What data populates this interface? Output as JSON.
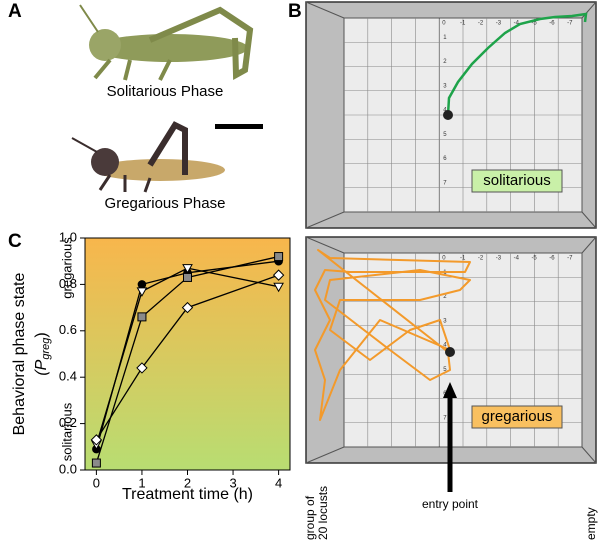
{
  "panels": {
    "a": "A",
    "b": "B",
    "c": "C"
  },
  "photos": {
    "solitarious_caption": "Solitarious Phase",
    "gregarious_caption": "Gregarious Phase"
  },
  "arenas": {
    "column_labels": [
      "0",
      "-1",
      "-2",
      "-3",
      "-4",
      "-5",
      "-6",
      "-7"
    ],
    "row_labels": [
      "1",
      "2",
      "3",
      "4",
      "5",
      "6",
      "7"
    ],
    "solitarious_tag": "solitarious",
    "gregarious_tag": "gregarious",
    "entry_label": "entry point",
    "group_label_line1": "group of",
    "group_label_line2": "20 locusts",
    "empty_label": "empty"
  },
  "chart_data": {
    "type": "line",
    "x_label": "Treatment time (h)",
    "y_label": "Behavioral phase state",
    "y_label_symbol": "(P",
    "y_label_subscript": "greg",
    "y_label_close": ")",
    "top_label": "gregarious",
    "bottom_label": "solitarious",
    "background_colors": [
      "#f8b64c",
      "#b8dd72"
    ],
    "line_color": "#000000",
    "x": [
      0,
      1,
      2,
      4
    ],
    "xlim": [
      -0.25,
      4.25
    ],
    "xticks": [
      0,
      1,
      2,
      3,
      4
    ],
    "ylim": [
      0,
      1
    ],
    "yticks": [
      {
        "value": 0,
        "label": "0.0"
      },
      0.2,
      0.4,
      0.6,
      0.8,
      {
        "value": 1,
        "label": "1.0"
      }
    ],
    "series": [
      {
        "marker": "circle",
        "color": "#000000",
        "values": [
          0.09,
          0.8,
          0.85,
          0.9
        ]
      },
      {
        "marker": "square",
        "color": "#8a8a8a",
        "values": [
          0.03,
          0.66,
          0.83,
          0.92
        ]
      },
      {
        "marker": "triangle-down",
        "color": "#ffffff",
        "values": [
          0.11,
          0.77,
          0.87,
          0.79
        ]
      },
      {
        "marker": "diamond",
        "color": "#ffffff",
        "values": [
          0.13,
          0.44,
          0.7,
          0.84
        ]
      }
    ]
  }
}
